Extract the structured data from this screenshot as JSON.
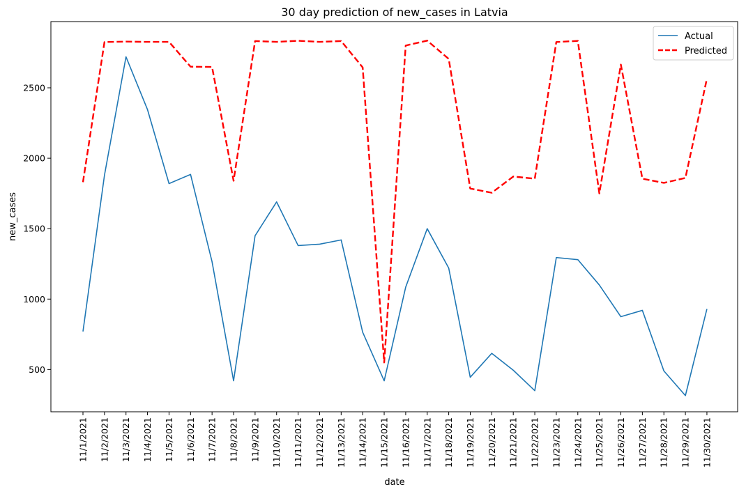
{
  "chart_data": {
    "type": "line",
    "title": "30 day prediction of new_cases in Latvia",
    "xlabel": "date",
    "ylabel": "new_cases",
    "categories": [
      "11/1/2021",
      "11/2/2021",
      "11/3/2021",
      "11/4/2021",
      "11/5/2021",
      "11/6/2021",
      "11/7/2021",
      "11/8/2021",
      "11/9/2021",
      "11/10/2021",
      "11/11/2021",
      "11/12/2021",
      "11/13/2021",
      "11/14/2021",
      "11/15/2021",
      "11/16/2021",
      "11/17/2021",
      "11/18/2021",
      "11/19/2021",
      "11/20/2021",
      "11/21/2021",
      "11/22/2021",
      "11/23/2021",
      "11/24/2021",
      "11/25/2021",
      "11/26/2021",
      "11/27/2021",
      "11/28/2021",
      "11/29/2021",
      "11/30/2021"
    ],
    "ylim": [
      200,
      2970
    ],
    "yticks": [
      500,
      1000,
      1500,
      2000,
      2500
    ],
    "grid": false,
    "legend_position": "top-right",
    "series": [
      {
        "name": "Actual",
        "color": "#1f77b4",
        "style": "solid",
        "values": [
          770,
          1880,
          2720,
          2345,
          1820,
          1885,
          1265,
          420,
          1450,
          1690,
          1380,
          1390,
          1420,
          765,
          420,
          1085,
          1500,
          1220,
          445,
          615,
          495,
          350,
          1295,
          1280,
          1100,
          875,
          920,
          490,
          315,
          930
        ]
      },
      {
        "name": "Predicted",
        "color": "#ff0000",
        "style": "dashed",
        "values": [
          1830,
          2825,
          2828,
          2826,
          2826,
          2650,
          2648,
          1840,
          2832,
          2826,
          2834,
          2826,
          2832,
          2645,
          550,
          2800,
          2835,
          2705,
          1785,
          1755,
          1870,
          1855,
          2825,
          2833,
          1750,
          2665,
          1855,
          1825,
          1860,
          2565
        ]
      }
    ]
  }
}
